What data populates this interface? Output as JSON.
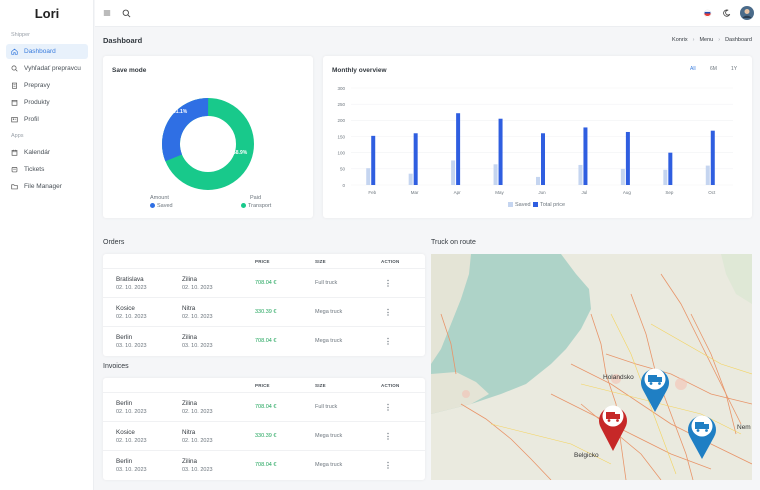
{
  "app": {
    "logo": "Lori"
  },
  "sidebar": {
    "section1": "Shipper",
    "section2": "Apps",
    "items": [
      {
        "label": "Dashboard",
        "icon": "home-icon",
        "active": true
      },
      {
        "label": "Vyhľadať prepravcu",
        "icon": "search-icon"
      },
      {
        "label": "Prepravy",
        "icon": "clipboard-icon"
      },
      {
        "label": "Produkty",
        "icon": "box-icon"
      },
      {
        "label": "Profil",
        "icon": "user-card-icon"
      },
      {
        "label": "Kalendár",
        "icon": "calendar-icon"
      },
      {
        "label": "Tickets",
        "icon": "ticket-icon"
      },
      {
        "label": "File Manager",
        "icon": "folder-icon"
      }
    ]
  },
  "header": {
    "title": "Dashboard",
    "breadcrumb": [
      "Konrix",
      "Menu",
      "Dashboard"
    ]
  },
  "save_mode": {
    "title": "Save mode",
    "amount_label": "Amount",
    "paid_label": "Paid",
    "saved_label": "Saved",
    "transport_label": "Transport",
    "saved_pct_label": "31.1%",
    "transport_pct_label": "68.9%",
    "colors": {
      "saved": "#2f6fe4",
      "transport": "#18c98b"
    }
  },
  "monthly": {
    "title": "Monthly overview",
    "tabs": [
      "All",
      "6M",
      "1Y"
    ],
    "legend": [
      "Saved",
      "Total price"
    ]
  },
  "chart_data": {
    "type": "bar",
    "categories": [
      "Feb",
      "Mar",
      "Apr",
      "May",
      "Jun",
      "Jul",
      "Aug",
      "Sep",
      "Oct"
    ],
    "series": [
      {
        "name": "Saved",
        "values": [
          52,
          35,
          76,
          64,
          25,
          62,
          50,
          47,
          60
        ]
      },
      {
        "name": "Total price",
        "values": [
          152,
          160,
          222,
          205,
          160,
          178,
          164,
          100,
          168
        ]
      }
    ],
    "yticks": [
      0,
      50,
      100,
      150,
      200,
      250,
      300
    ],
    "ylim": [
      0,
      300
    ],
    "colors": {
      "Saved": "#c5d5f0",
      "Total price": "#2f5ee0"
    }
  },
  "orders": {
    "title": "Orders",
    "columns": [
      "PRICE",
      "SIZE",
      "ACTION"
    ],
    "rows": [
      {
        "from": "Bratislava",
        "from_date": "02. 10. 2023",
        "to": "Zilina",
        "to_date": "02. 10. 2023",
        "price": "708.04 €",
        "size": "Full truck",
        "action": "⋮"
      },
      {
        "from": "Kosice",
        "from_date": "02. 10. 2023",
        "to": "Nitra",
        "to_date": "02. 10. 2023",
        "price": "330.39 €",
        "size": "Mega truck",
        "action": "⋮"
      },
      {
        "from": "Berlin",
        "from_date": "03. 10. 2023",
        "to": "Zilina",
        "to_date": "03. 10. 2023",
        "price": "708.04 €",
        "size": "Mega truck",
        "action": "⋮"
      }
    ]
  },
  "invoices": {
    "title": "Invoices",
    "columns": [
      "PRICE",
      "SIZE",
      "ACTION"
    ],
    "rows": [
      {
        "from": "Berlin",
        "from_date": "02. 10. 2023",
        "to": "Zilina",
        "to_date": "02. 10. 2023",
        "price": "708.04 €",
        "size": "Full truck",
        "action": "⋮"
      },
      {
        "from": "Kosice",
        "from_date": "02. 10. 2023",
        "to": "Nitra",
        "to_date": "02. 10. 2023",
        "price": "330.39 €",
        "size": "Mega truck",
        "action": "⋮"
      },
      {
        "from": "Berlin",
        "from_date": "03. 10. 2023",
        "to": "Zilina",
        "to_date": "03. 10. 2023",
        "price": "708.04 €",
        "size": "Mega truck",
        "action": "⋮"
      }
    ]
  },
  "route": {
    "title": "Truck on route",
    "map_labels": [
      "Holandsko",
      "Belgicko",
      "Nem"
    ]
  }
}
